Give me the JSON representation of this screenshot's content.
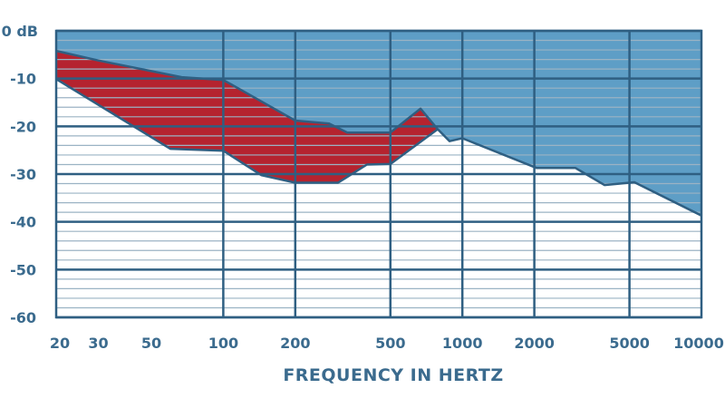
{
  "chart_data": {
    "type": "area",
    "title": "",
    "xlabel": "FREQUENCY IN HERTZ",
    "ylabel": "",
    "x_scale": "log",
    "xlim": [
      20,
      10000
    ],
    "ylim": [
      -60,
      0
    ],
    "x_ticks": [
      20,
      30,
      50,
      100,
      200,
      500,
      1000,
      2000,
      5000,
      10000
    ],
    "x_tick_labels": [
      "20",
      "30",
      "50",
      "100",
      "200",
      "500",
      "1000",
      "2000",
      "5000",
      "10000"
    ],
    "x_gridlines": [
      100,
      200,
      500,
      1000,
      2000,
      5000
    ],
    "y_ticks": [
      0,
      -10,
      -20,
      -30,
      -40,
      -50,
      -60
    ],
    "y_tick_labels": [
      "0 dB",
      "-10",
      "-20",
      "-30",
      "-40",
      "-50",
      "-60"
    ],
    "y_minor_step": 2,
    "grid": true,
    "colors": {
      "blue_region": "#5e9ec6",
      "red_region": "#b5232f",
      "outline": "#2f5f82",
      "text": "#3b6b8e",
      "minor_grid": "#9bb3c4"
    },
    "upper_curve": {
      "x": [
        20,
        30,
        67,
        100,
        200,
        277,
        330,
        500,
        668,
        789
      ],
      "y": [
        -4.2,
        -6.2,
        -9.7,
        -10.3,
        -18.8,
        -19.4,
        -21.3,
        -21.3,
        -16.3,
        -20.6
      ]
    },
    "red_lower_curve": {
      "x": [
        20,
        60,
        100,
        144,
        200,
        302,
        399,
        500,
        789
      ],
      "y": [
        -10.1,
        -24.7,
        -25.1,
        -30.2,
        -31.8,
        -31.8,
        -28,
        -27.9,
        -20.6
      ]
    },
    "blue_lower_curve": {
      "x": [
        789,
        884,
        1000,
        2040,
        2970,
        3930,
        5240,
        10000
      ],
      "y": [
        -20.6,
        -23.1,
        -22.5,
        -28.7,
        -28.7,
        -32.3,
        -31.7,
        -38.7
      ]
    }
  }
}
